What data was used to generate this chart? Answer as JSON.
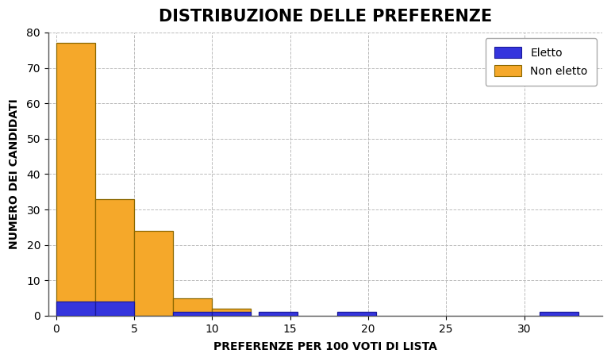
{
  "title": "DISTRIBUZIONE DELLE PREFERENZE",
  "xlabel": "PREFERENZE PER 100 VOTI DI LISTA",
  "ylabel": "NUMERO DEI CANDIDATI",
  "background_color": "#ffffff",
  "plot_bg_color": "#ffffff",
  "grid_color": "#bbbbbb",
  "non_eletto_color": "#f5a82a",
  "non_eletto_edge": "#8B6800",
  "eletto_color": "#3535dd",
  "eletto_edge": "#1a1a99",
  "legend_eletto": "Eletto",
  "legend_non_eletto": "Non eletto",
  "bin_width": 2.5,
  "bin_starts": [
    0,
    2.5,
    5,
    7.5,
    10,
    12.5,
    14,
    17.5,
    31
  ],
  "non_eletto_counts": [
    77,
    33,
    24,
    5,
    2,
    0,
    0,
    0,
    0
  ],
  "eletto_counts": [
    4,
    4,
    0,
    1,
    1,
    1,
    0,
    1,
    1
  ],
  "xlim": [
    -0.5,
    35
  ],
  "ylim": [
    0,
    80
  ],
  "yticks": [
    0,
    10,
    20,
    30,
    40,
    50,
    60,
    70,
    80
  ],
  "xticks": [
    0,
    5,
    10,
    15,
    20,
    25,
    30
  ],
  "title_fontsize": 15,
  "label_fontsize": 10,
  "tick_fontsize": 10
}
